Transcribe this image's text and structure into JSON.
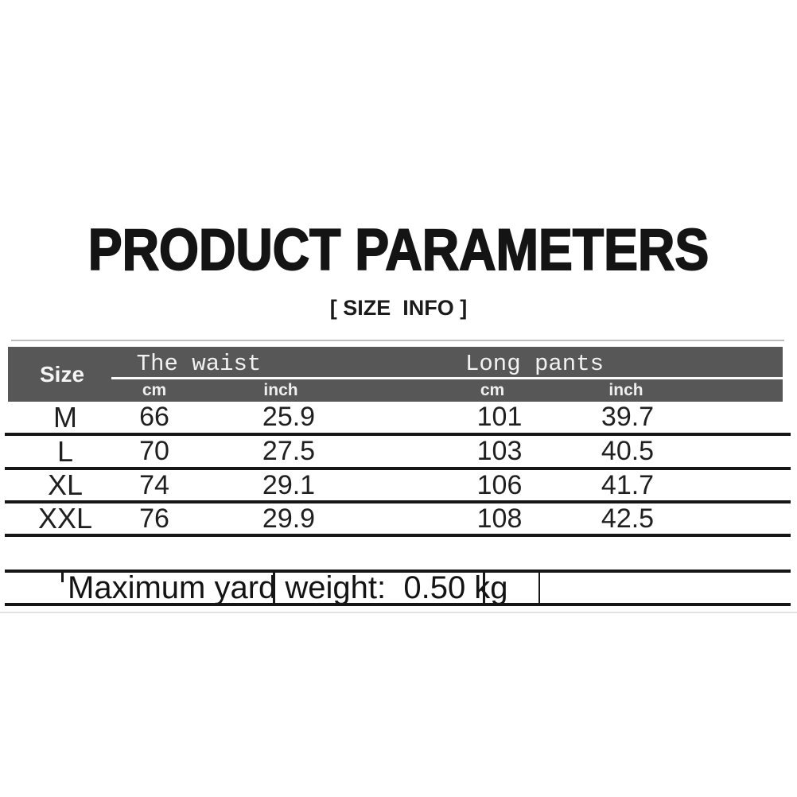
{
  "page": {
    "title": "PRODUCT PARAMETERS",
    "subtitle": "[ SIZE  INFO ]"
  },
  "size_table": {
    "size_header": "Size",
    "groups": [
      {
        "label": "The waist",
        "sub": [
          "cm",
          "inch"
        ]
      },
      {
        "label": "Long pants",
        "sub": [
          "cm",
          "inch"
        ]
      }
    ],
    "rows": [
      {
        "size": "M",
        "waist_cm": "66",
        "waist_inch": "25.9",
        "pants_cm": "101",
        "pants_inch": "39.7"
      },
      {
        "size": "L",
        "waist_cm": "70",
        "waist_inch": "27.5",
        "pants_cm": "103",
        "pants_inch": "40.5"
      },
      {
        "size": "XL",
        "waist_cm": "74",
        "waist_inch": "29.1",
        "pants_cm": "106",
        "pants_inch": "41.7"
      },
      {
        "size": "XXL",
        "waist_cm": "76",
        "waist_inch": "29.9",
        "pants_cm": "108",
        "pants_inch": "42.5"
      }
    ]
  },
  "footer": {
    "weight_note": "Maximum yard weight:  0.50 kg"
  },
  "colors": {
    "background": "#ffffff",
    "header_bg": "#575757",
    "header_text": "#f4f4f4",
    "line": "#161616",
    "text": "#1f1f1f"
  },
  "chart_data": {
    "type": "table",
    "title": "PRODUCT PARAMETERS",
    "subtitle": "[ SIZE INFO ]",
    "column_groups": [
      "The waist",
      "Long pants"
    ],
    "columns": [
      "Size",
      "The waist cm",
      "The waist inch",
      "Long pants cm",
      "Long pants inch"
    ],
    "rows": [
      [
        "M",
        66,
        25.9,
        101,
        39.7
      ],
      [
        "L",
        70,
        27.5,
        103,
        40.5
      ],
      [
        "XL",
        74,
        29.1,
        106,
        41.7
      ],
      [
        "XXL",
        76,
        29.9,
        108,
        42.5
      ]
    ],
    "note": "Maximum yard weight: 0.50 kg"
  }
}
